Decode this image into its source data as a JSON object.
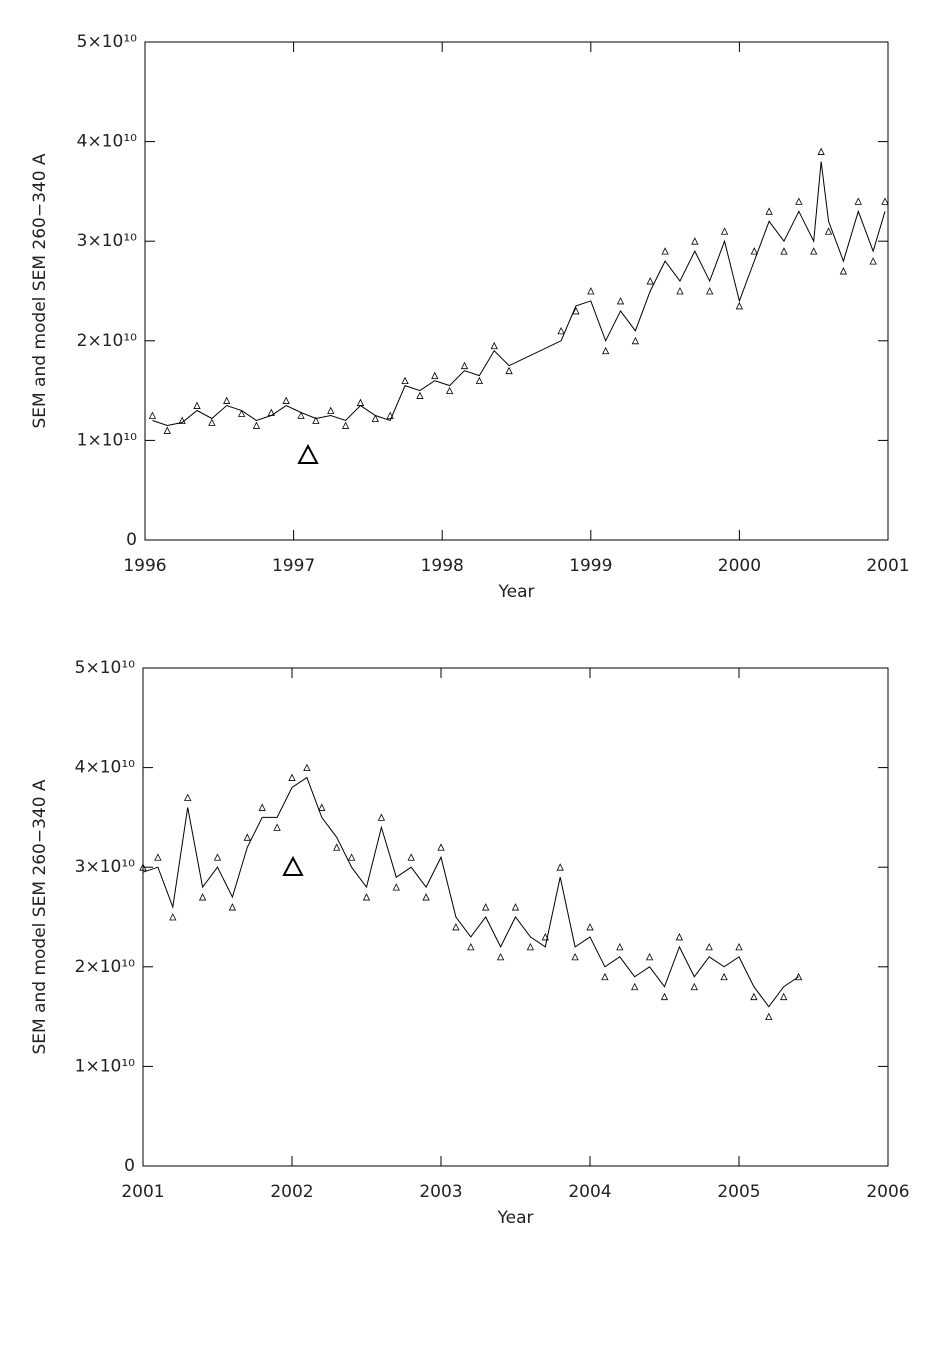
{
  "chart_data": [
    {
      "type": "line",
      "xlabel": "Year",
      "ylabel": "SEM and model SEM 260−340 A",
      "xlim": [
        1996,
        2001
      ],
      "xticks": [
        1996,
        1997,
        1998,
        1999,
        2000,
        2001
      ],
      "ylim": [
        0,
        50000000000.0
      ],
      "yticks": [
        0,
        {
          "value": 10000000000.0,
          "label": "1×10¹⁰"
        },
        {
          "value": 20000000000.0,
          "label": "2×10¹⁰"
        },
        {
          "value": 30000000000.0,
          "label": "3×10¹⁰"
        },
        {
          "value": 40000000000.0,
          "label": "4×10¹⁰"
        },
        {
          "value": 50000000000.0,
          "label": "5×10¹⁰"
        }
      ],
      "x": [
        1996.05,
        1996.15,
        1996.25,
        1996.35,
        1996.45,
        1996.55,
        1996.65,
        1996.75,
        1996.85,
        1996.95,
        1997.05,
        1997.15,
        1997.25,
        1997.35,
        1997.45,
        1997.55,
        1997.65,
        1997.75,
        1997.85,
        1997.95,
        1998.05,
        1998.15,
        1998.25,
        1998.35,
        1998.45,
        1998.8,
        1998.9,
        1999.0,
        1999.1,
        1999.2,
        1999.3,
        1999.4,
        1999.5,
        1999.6,
        1999.7,
        1999.8,
        1999.9,
        2000.0,
        2000.1,
        2000.2,
        2000.3,
        2000.4,
        2000.5,
        2000.55,
        2000.6,
        2000.7,
        2000.8,
        2000.9,
        2000.98
      ],
      "series": [
        {
          "color": "#000000",
          "style": "line",
          "values": [
            12000000000.0,
            11500000000.0,
            11800000000.0,
            13000000000.0,
            12200000000.0,
            13500000000.0,
            13000000000.0,
            12000000000.0,
            12500000000.0,
            13500000000.0,
            12800000000.0,
            12200000000.0,
            12500000000.0,
            12000000000.0,
            13500000000.0,
            12500000000.0,
            12000000000.0,
            15500000000.0,
            15000000000.0,
            16000000000.0,
            15500000000.0,
            17000000000.0,
            16500000000.0,
            19000000000.0,
            17500000000.0,
            20000000000.0,
            23500000000.0,
            24000000000.0,
            20000000000.0,
            23000000000.0,
            21000000000.0,
            25000000000.0,
            28000000000.0,
            26000000000.0,
            29000000000.0,
            26000000000.0,
            30000000000.0,
            24000000000.0,
            28000000000.0,
            32000000000.0,
            30000000000.0,
            33000000000.0,
            30000000000.0,
            38000000000.0,
            32000000000.0,
            28000000000.0,
            33000000000.0,
            29000000000.0,
            33000000000.0
          ]
        },
        {
          "color": "#000000",
          "style": "triangle",
          "values": [
            12500000000.0,
            11000000000.0,
            12000000000.0,
            13500000000.0,
            11800000000.0,
            14000000000.0,
            12700000000.0,
            11500000000.0,
            12800000000.0,
            14000000000.0,
            12500000000.0,
            12000000000.0,
            13000000000.0,
            11500000000.0,
            13800000000.0,
            12200000000.0,
            12500000000.0,
            16000000000.0,
            14500000000.0,
            16500000000.0,
            15000000000.0,
            17500000000.0,
            16000000000.0,
            19500000000.0,
            17000000000.0,
            21000000000.0,
            23000000000.0,
            25000000000.0,
            19000000000.0,
            24000000000.0,
            20000000000.0,
            26000000000.0,
            29000000000.0,
            25000000000.0,
            30000000000.0,
            25000000000.0,
            31000000000.0,
            23500000000.0,
            29000000000.0,
            33000000000.0,
            29000000000.0,
            34000000000.0,
            29000000000.0,
            39000000000.0,
            31000000000.0,
            27000000000.0,
            34000000000.0,
            28000000000.0,
            34000000000.0
          ]
        }
      ]
    },
    {
      "type": "line",
      "xlabel": "Year",
      "ylabel": "SEM and model SEM 260−340 A",
      "xlim": [
        2001,
        2006
      ],
      "xticks": [
        2001,
        2002,
        2003,
        2004,
        2005,
        2006
      ],
      "ylim": [
        0,
        50000000000.0
      ],
      "yticks": [
        0,
        {
          "value": 10000000000.0,
          "label": "1×10¹⁰"
        },
        {
          "value": 20000000000.0,
          "label": "2×10¹⁰"
        },
        {
          "value": 30000000000.0,
          "label": "3×10¹⁰"
        },
        {
          "value": 40000000000.0,
          "label": "4×10¹⁰"
        },
        {
          "value": 50000000000.0,
          "label": "5×10¹⁰"
        }
      ],
      "x": [
        2001.0,
        2001.1,
        2001.2,
        2001.3,
        2001.4,
        2001.5,
        2001.6,
        2001.7,
        2001.8,
        2001.9,
        2002.0,
        2002.1,
        2002.2,
        2002.3,
        2002.4,
        2002.5,
        2002.6,
        2002.7,
        2002.8,
        2002.9,
        2003.0,
        2003.1,
        2003.2,
        2003.3,
        2003.4,
        2003.5,
        2003.6,
        2003.7,
        2003.8,
        2003.9,
        2004.0,
        2004.1,
        2004.2,
        2004.3,
        2004.4,
        2004.5,
        2004.6,
        2004.7,
        2004.8,
        2004.9,
        2005.0,
        2005.1,
        2005.2,
        2005.3,
        2005.4
      ],
      "series": [
        {
          "color": "#000000",
          "style": "line",
          "values": [
            29500000000.0,
            30000000000.0,
            26000000000.0,
            36000000000.0,
            28000000000.0,
            30000000000.0,
            27000000000.0,
            32000000000.0,
            35000000000.0,
            35000000000.0,
            38000000000.0,
            39000000000.0,
            35000000000.0,
            33000000000.0,
            30000000000.0,
            28000000000.0,
            34000000000.0,
            29000000000.0,
            30000000000.0,
            28000000000.0,
            31000000000.0,
            25000000000.0,
            23000000000.0,
            25000000000.0,
            22000000000.0,
            25000000000.0,
            23000000000.0,
            22000000000.0,
            29000000000.0,
            22000000000.0,
            23000000000.0,
            20000000000.0,
            21000000000.0,
            19000000000.0,
            20000000000.0,
            18000000000.0,
            22000000000.0,
            19000000000.0,
            21000000000.0,
            20000000000.0,
            21000000000.0,
            18000000000.0,
            16000000000.0,
            18000000000.0,
            19000000000.0
          ]
        },
        {
          "color": "#000000",
          "style": "triangle",
          "values": [
            30000000000.0,
            31000000000.0,
            25000000000.0,
            37000000000.0,
            27000000000.0,
            31000000000.0,
            26000000000.0,
            33000000000.0,
            36000000000.0,
            34000000000.0,
            39000000000.0,
            40000000000.0,
            36000000000.0,
            32000000000.0,
            31000000000.0,
            27000000000.0,
            35000000000.0,
            28000000000.0,
            31000000000.0,
            27000000000.0,
            32000000000.0,
            24000000000.0,
            22000000000.0,
            26000000000.0,
            21000000000.0,
            26000000000.0,
            22000000000.0,
            23000000000.0,
            30000000000.0,
            21000000000.0,
            24000000000.0,
            19000000000.0,
            22000000000.0,
            18000000000.0,
            21000000000.0,
            17000000000.0,
            23000000000.0,
            18000000000.0,
            22000000000.0,
            19000000000.0,
            22000000000.0,
            17000000000.0,
            15000000000.0,
            17000000000.0,
            19000000000.0
          ]
        }
      ]
    }
  ]
}
